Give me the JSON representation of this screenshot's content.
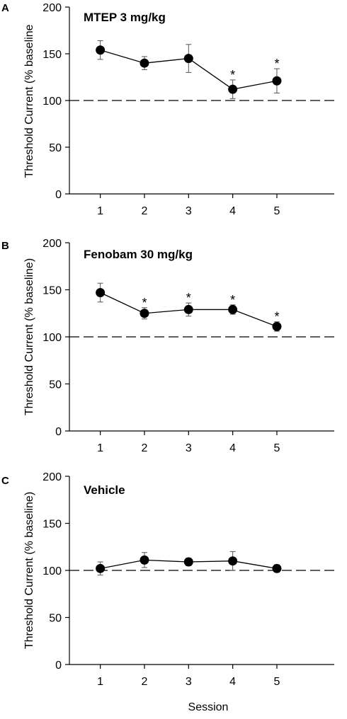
{
  "figure": {
    "xlabel": "Session",
    "ylabel_top": "Threshold Current (% baseline",
    "ylabel": "Threshold Current (% baseline)"
  },
  "chart_data": [
    {
      "panel": "A",
      "type": "line",
      "title": "MTEP 3 mg/kg",
      "x": [
        1,
        2,
        3,
        4,
        5
      ],
      "xticks": [
        "1",
        "2",
        "3",
        "4",
        "5"
      ],
      "xlim": [
        0.3,
        6.3
      ],
      "ylim": [
        0,
        200
      ],
      "yticks": [
        "0",
        "50",
        "100",
        "150",
        "200"
      ],
      "series": [
        {
          "values": [
            154,
            140,
            145,
            112,
            121
          ],
          "error": [
            10,
            7,
            15,
            10,
            13
          ],
          "significant": [
            false,
            false,
            false,
            true,
            true
          ]
        }
      ],
      "reference_line": 100,
      "annotation": "*"
    },
    {
      "panel": "B",
      "type": "line",
      "title": "Fenobam 30 mg/kg",
      "x": [
        1,
        2,
        3,
        4,
        5
      ],
      "xticks": [
        "1",
        "2",
        "3",
        "4",
        "5"
      ],
      "xlim": [
        0.3,
        6.3
      ],
      "ylim": [
        0,
        200
      ],
      "yticks": [
        "0",
        "50",
        "100",
        "150",
        "200"
      ],
      "series": [
        {
          "values": [
            147,
            125,
            129,
            129,
            111
          ],
          "error": [
            10,
            6,
            7,
            5,
            5
          ],
          "significant": [
            false,
            true,
            true,
            true,
            true
          ]
        }
      ],
      "reference_line": 100,
      "annotation": "*"
    },
    {
      "panel": "C",
      "type": "line",
      "title": "Vehicle",
      "x": [
        1,
        2,
        3,
        4,
        5
      ],
      "xticks": [
        "1",
        "2",
        "3",
        "4",
        "5"
      ],
      "xlim": [
        0.3,
        6.3
      ],
      "ylim": [
        0,
        200
      ],
      "yticks": [
        "0",
        "50",
        "100",
        "150",
        "200"
      ],
      "series": [
        {
          "values": [
            102,
            111,
            109,
            110,
            102
          ],
          "error": [
            7,
            8,
            4,
            10,
            4
          ],
          "significant": [
            false,
            false,
            false,
            false,
            false
          ]
        }
      ],
      "reference_line": 100,
      "annotation": "*"
    }
  ]
}
